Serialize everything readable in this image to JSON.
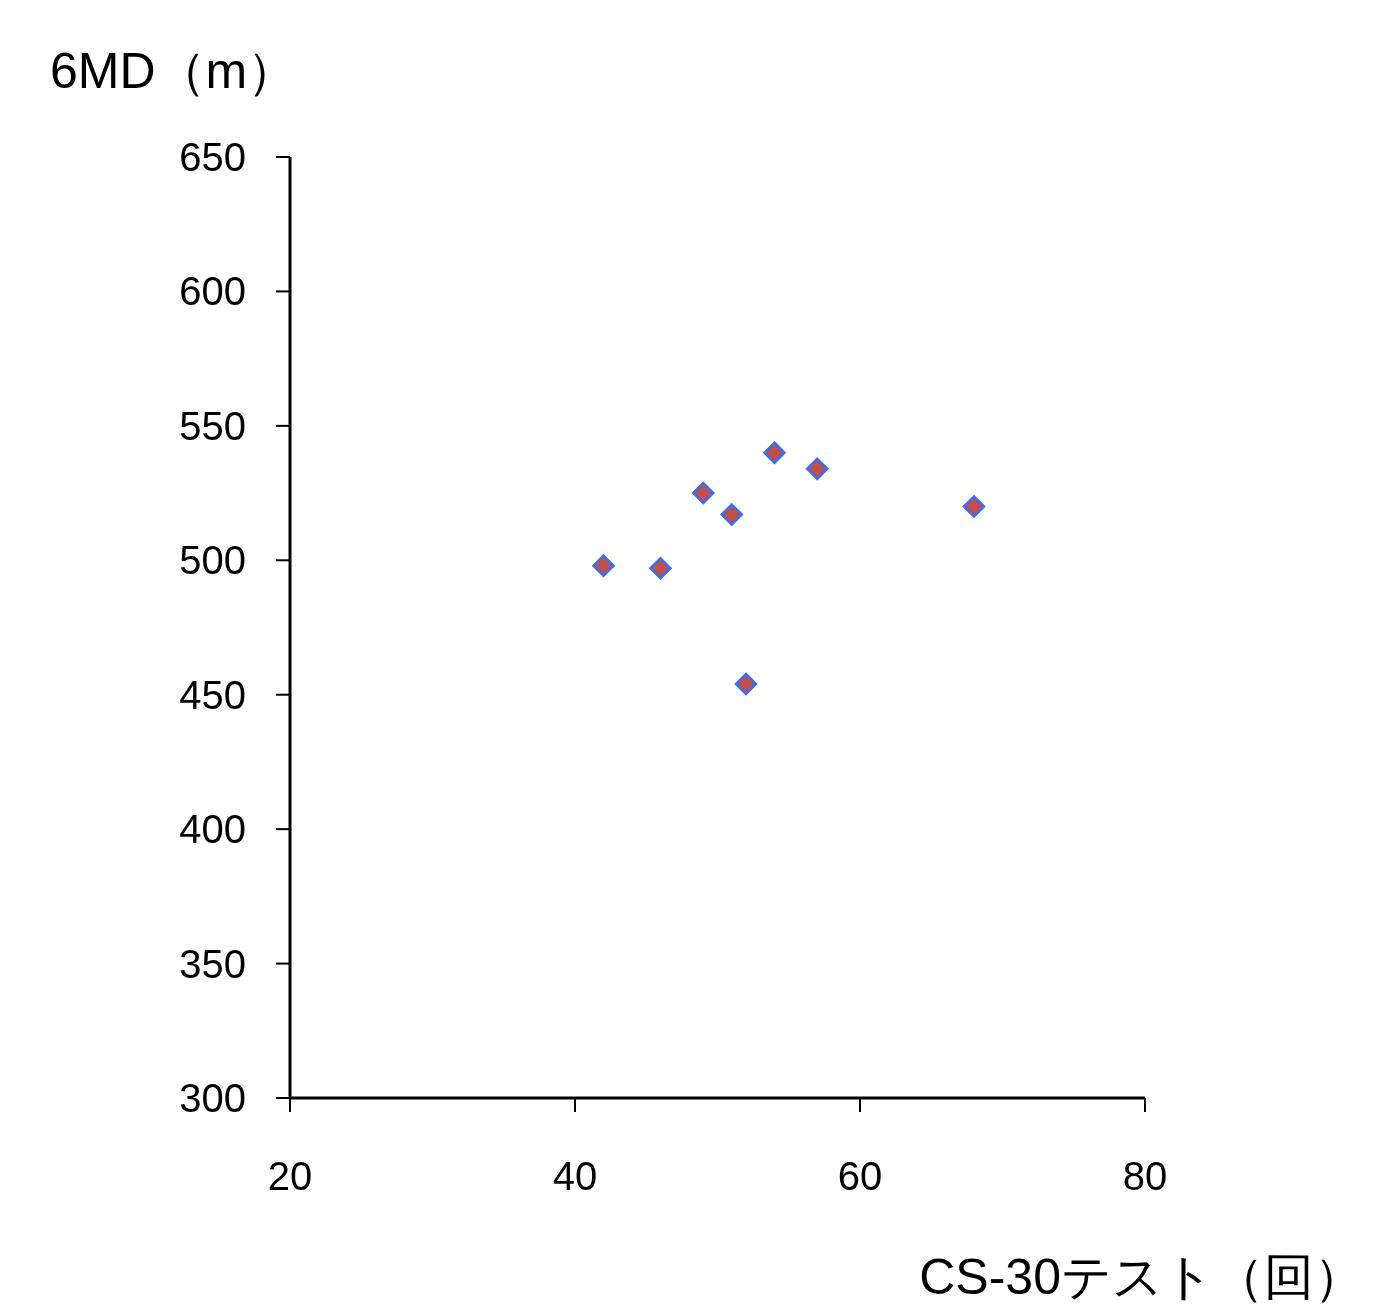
{
  "chart_data": {
    "type": "scatter",
    "ylabel": "6MD（m）",
    "xlabel": "CS-30テスト（回）",
    "x": [
      42,
      46,
      49,
      51,
      52,
      54,
      57,
      68
    ],
    "series": [
      {
        "color": "#c0504d",
        "values": [
          498,
          497,
          525,
          517,
          454,
          540,
          534,
          520
        ]
      }
    ],
    "marker": "diamond",
    "xlim": [
      20,
      80
    ],
    "xticks": [
      20,
      40,
      60,
      80
    ],
    "ylim": [
      300,
      650
    ],
    "yticks": [
      300,
      350,
      400,
      450,
      500,
      550,
      600,
      650
    ],
    "grid": false
  }
}
